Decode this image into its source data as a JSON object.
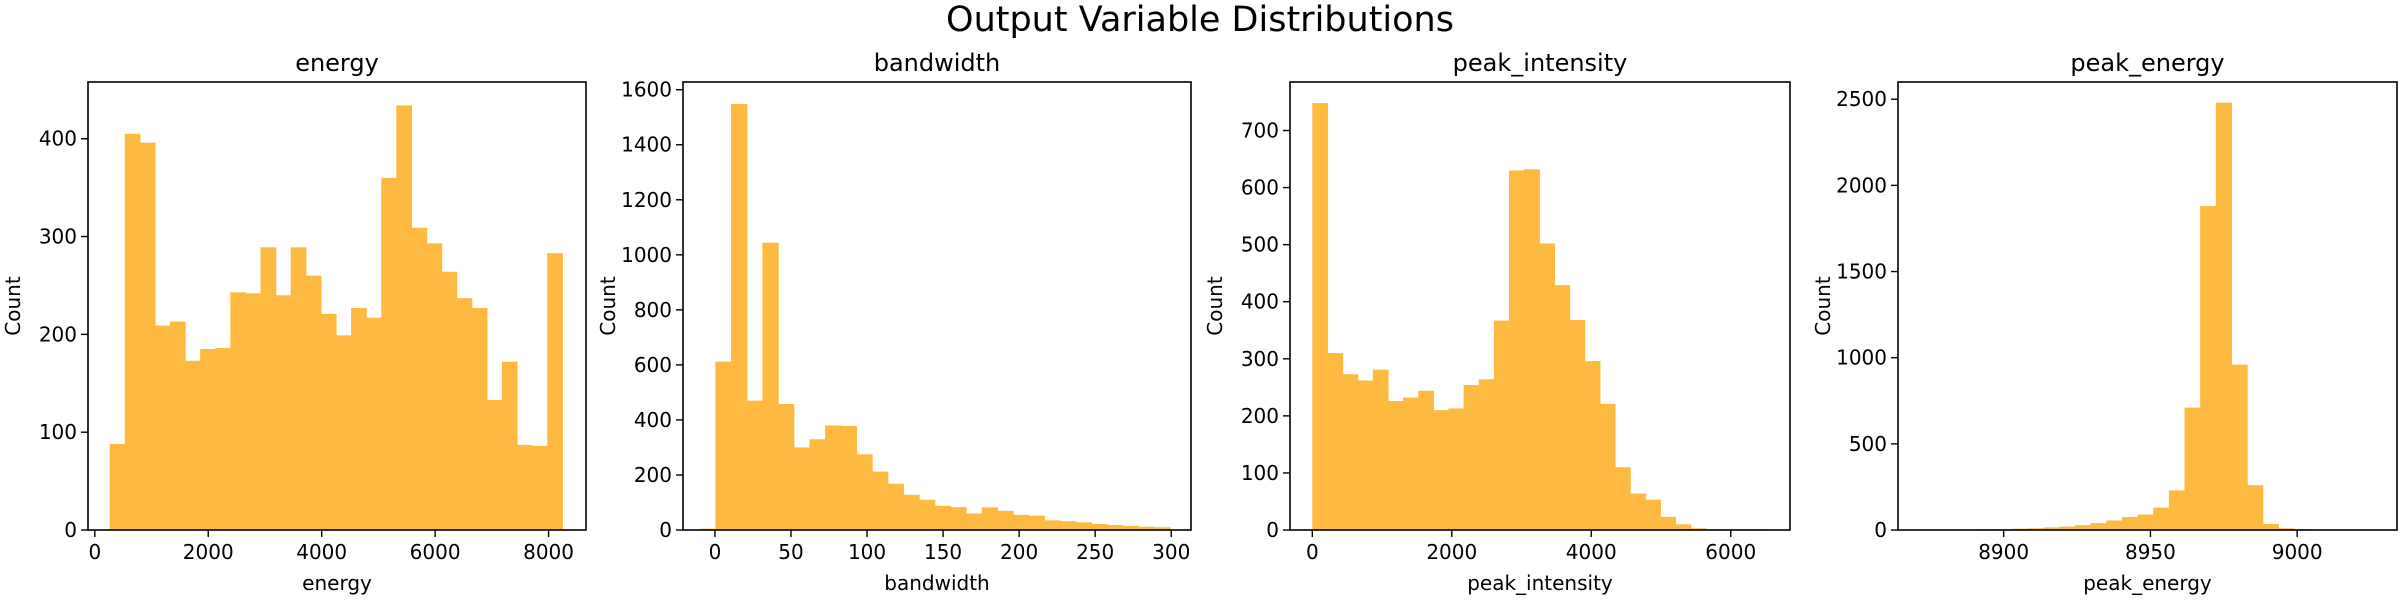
{
  "suptitle": "Output Variable Distributions",
  "bar_color": "#fdb940",
  "chart_data": [
    {
      "type": "bar",
      "title": "energy",
      "xlabel": "energy",
      "ylabel": "Count",
      "xlim": [
        -120,
        8660
      ],
      "ylim": [
        0,
        458
      ],
      "xticks": [
        0,
        2000,
        4000,
        6000,
        8000
      ],
      "yticks": [
        0,
        100,
        200,
        300,
        400
      ],
      "bin_start": 262,
      "bin_width": 266,
      "values": [
        88,
        405,
        396,
        209,
        213,
        173,
        185,
        186,
        243,
        242,
        289,
        240,
        289,
        260,
        221,
        199,
        227,
        217,
        360,
        434,
        309,
        293,
        264,
        237,
        227,
        133,
        172,
        87,
        86,
        283
      ]
    },
    {
      "type": "bar",
      "title": "bandwidth",
      "xlabel": "bandwidth",
      "ylabel": "Count",
      "xlim": [
        -21,
        313
      ],
      "ylim": [
        0,
        1628
      ],
      "xticks": [
        0,
        50,
        100,
        150,
        200,
        250,
        300
      ],
      "yticks": [
        0,
        200,
        400,
        600,
        800,
        1000,
        1200,
        1400,
        1600
      ],
      "bin_start": -10,
      "bin_width": 10.3,
      "values": [
        5,
        612,
        1548,
        470,
        1044,
        458,
        300,
        330,
        380,
        378,
        275,
        212,
        168,
        128,
        110,
        88,
        83,
        60,
        82,
        70,
        55,
        52,
        35,
        32,
        28,
        22,
        18,
        15,
        12,
        10
      ]
    },
    {
      "type": "bar",
      "title": "peak_intensity",
      "xlabel": "peak_intensity",
      "ylabel": "Count",
      "xlim": [
        -320,
        6850
      ],
      "ylim": [
        0,
        785
      ],
      "xticks": [
        0,
        2000,
        4000,
        6000
      ],
      "yticks": [
        0,
        100,
        200,
        300,
        400,
        500,
        600,
        700
      ],
      "bin_start": 0,
      "bin_width": 217,
      "values": [
        748,
        310,
        273,
        262,
        281,
        226,
        232,
        244,
        210,
        213,
        254,
        264,
        367,
        630,
        632,
        502,
        429,
        368,
        296,
        221,
        110,
        64,
        53,
        23,
        10,
        3,
        1,
        1,
        1,
        1
      ]
    },
    {
      "type": "bar",
      "title": "peak_energy",
      "xlabel": "peak_energy",
      "ylabel": "Count",
      "xlim": [
        8864,
        9034
      ],
      "ylim": [
        0,
        2600
      ],
      "xticks": [
        8900,
        8950,
        9000
      ],
      "yticks": [
        0,
        500,
        1000,
        1500,
        2000,
        2500
      ],
      "bin_start": 8871,
      "bin_width": 5.33,
      "values": [
        2,
        2,
        3,
        3,
        4,
        5,
        8,
        10,
        15,
        20,
        28,
        40,
        55,
        75,
        90,
        130,
        230,
        710,
        1880,
        2480,
        960,
        260,
        35,
        10,
        5,
        3,
        2,
        1,
        1,
        1
      ]
    }
  ]
}
